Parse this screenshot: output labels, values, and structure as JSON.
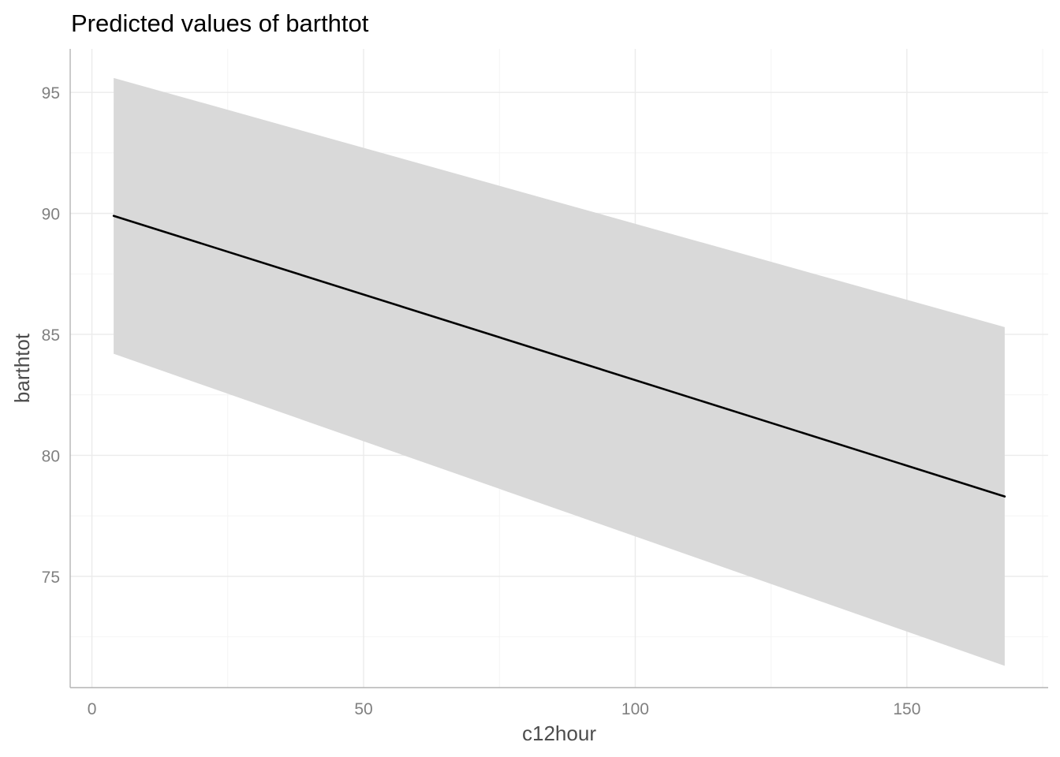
{
  "chart_data": {
    "type": "line",
    "title": "Predicted values of barthtot",
    "xlabel": "c12hour",
    "ylabel": "barthtot",
    "xlim": [
      -4,
      176
    ],
    "ylim": [
      70.4,
      96.8
    ],
    "x_ticks": [
      0,
      50,
      100,
      150
    ],
    "x_tick_labels": [
      "0",
      "50",
      "100",
      "150"
    ],
    "y_ticks": [
      75,
      80,
      85,
      90,
      95
    ],
    "y_tick_labels": [
      "75",
      "80",
      "85",
      "90",
      "95"
    ],
    "grid": true,
    "legend": "none",
    "series": [
      {
        "x": [
          4,
          168
        ],
        "y": [
          89.9,
          78.3
        ],
        "ci_low": [
          84.2,
          71.3
        ],
        "ci_high": [
          95.6,
          85.3
        ]
      }
    ],
    "colors": {
      "line": "#000000",
      "ribbon": "#d9d9d9"
    }
  }
}
